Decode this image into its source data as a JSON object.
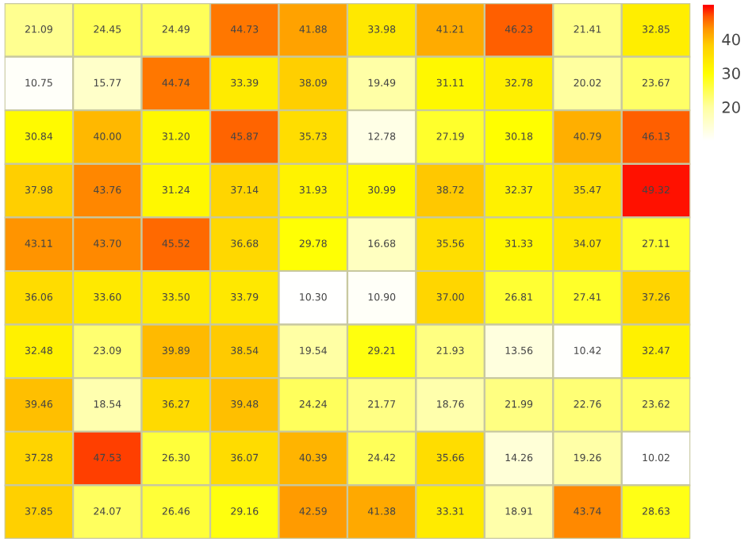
{
  "chart_data": {
    "type": "heatmap",
    "categories": [
      null,
      null,
      null,
      null,
      null,
      null,
      null,
      null,
      null,
      null
    ],
    "y_categories": [
      null,
      null,
      null,
      null,
      null,
      null,
      null,
      null,
      null,
      null
    ],
    "cells": [
      [
        21.09,
        24.45,
        24.49,
        44.73,
        41.88,
        33.98,
        41.21,
        46.23,
        21.41,
        32.85
      ],
      [
        10.75,
        15.77,
        44.74,
        33.39,
        38.09,
        19.49,
        31.11,
        32.78,
        20.02,
        23.67
      ],
      [
        30.84,
        40.0,
        31.2,
        45.87,
        35.73,
        12.78,
        27.19,
        30.18,
        40.79,
        46.13
      ],
      [
        37.98,
        43.76,
        31.24,
        37.14,
        31.93,
        30.99,
        38.72,
        32.37,
        35.47,
        49.32
      ],
      [
        43.11,
        43.7,
        45.52,
        36.68,
        29.78,
        16.68,
        35.56,
        31.33,
        34.07,
        27.11
      ],
      [
        36.06,
        33.6,
        33.5,
        33.79,
        10.3,
        10.9,
        37.0,
        26.81,
        27.41,
        37.26
      ],
      [
        32.48,
        23.09,
        39.89,
        38.54,
        19.54,
        29.21,
        21.93,
        13.56,
        10.42,
        32.47
      ],
      [
        39.46,
        18.54,
        36.27,
        39.48,
        24.24,
        21.77,
        18.76,
        21.99,
        22.76,
        23.62
      ],
      [
        37.28,
        47.53,
        26.3,
        36.07,
        40.39,
        24.42,
        35.66,
        14.26,
        19.26,
        10.02
      ],
      [
        37.85,
        24.07,
        26.46,
        29.16,
        42.59,
        41.38,
        33.31,
        18.91,
        43.74,
        28.63
      ]
    ],
    "cell_labels": [
      [
        "21.09",
        "24.45",
        "24.49",
        "44.73",
        "41.88",
        "33.98",
        "41.21",
        "46.23",
        "21.41",
        "32.85"
      ],
      [
        "10.75",
        "15.77",
        "44.74",
        "33.39",
        "38.09",
        "19.49",
        "31.11",
        "32.78",
        "20.02",
        "23.67"
      ],
      [
        "30.84",
        "40.00",
        "31.20",
        "45.87",
        "35.73",
        "12.78",
        "27.19",
        "30.18",
        "40.79",
        "46.13"
      ],
      [
        "37.98",
        "43.76",
        "31.24",
        "37.14",
        "31.93",
        "30.99",
        "38.72",
        "32.37",
        "35.47",
        "49.32"
      ],
      [
        "43.11",
        "43.70",
        "45.52",
        "36.68",
        "29.78",
        "16.68",
        "35.56",
        "31.33",
        "34.07",
        "27.11"
      ],
      [
        "36.06",
        "33.60",
        "33.50",
        "33.79",
        "10.30",
        "10.90",
        "37.00",
        "26.81",
        "27.41",
        "37.26"
      ],
      [
        "32.48",
        "23.09",
        "39.89",
        "38.54",
        "19.54",
        "29.21",
        "21.93",
        "13.56",
        "10.42",
        "32.47"
      ],
      [
        "39.46",
        "18.54",
        "36.27",
        "39.48",
        "24.24",
        "21.77",
        "18.76",
        "21.99",
        "22.76",
        "23.62"
      ],
      [
        "37.28",
        "47.53",
        "26.30",
        "36.07",
        "40.39",
        "24.42",
        "35.66",
        "14.26",
        "19.26",
        "10.02"
      ],
      [
        "37.85",
        "24.07",
        "26.46",
        "29.16",
        "42.59",
        "41.38",
        "33.31",
        "18.91",
        "43.74",
        "28.63"
      ]
    ],
    "clim": [
      10,
      50
    ],
    "cticks": [
      20,
      30,
      40
    ]
  }
}
